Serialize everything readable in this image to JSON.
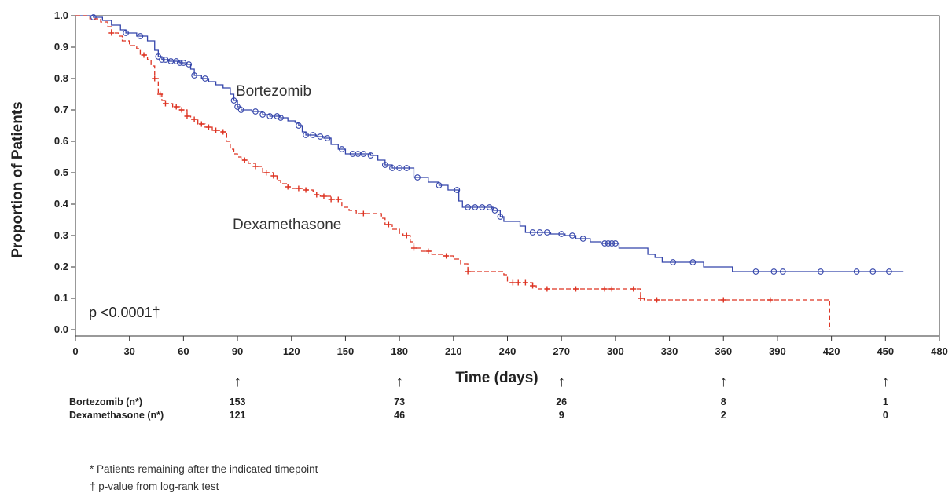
{
  "chart_data": {
    "type": "line",
    "subtype": "kaplan-meier",
    "xlabel": "Time (days)",
    "ylabel": "Proportion of Patients",
    "xlim": [
      0,
      480
    ],
    "ylim": [
      0.0,
      1.0
    ],
    "x_ticks": [
      "0",
      "30",
      "60",
      "90",
      "120",
      "150",
      "180",
      "210",
      "240",
      "270",
      "300",
      "330",
      "360",
      "390",
      "420",
      "450",
      "480"
    ],
    "y_ticks": [
      "0.0",
      "0.1",
      "0.2",
      "0.3",
      "0.4",
      "0.5",
      "0.6",
      "0.7",
      "0.8",
      "0.9",
      "1.0"
    ],
    "grid": false,
    "series": [
      {
        "name": "Bortezomib",
        "color": "#3344aa",
        "line_style": "solid",
        "marker": "circle",
        "steps": [
          [
            0,
            1.0
          ],
          [
            10,
            0.995
          ],
          [
            15,
            0.985
          ],
          [
            20,
            0.97
          ],
          [
            25,
            0.955
          ],
          [
            28,
            0.945
          ],
          [
            34,
            0.935
          ],
          [
            40,
            0.92
          ],
          [
            44,
            0.89
          ],
          [
            46,
            0.87
          ],
          [
            48,
            0.86
          ],
          [
            52,
            0.855
          ],
          [
            58,
            0.85
          ],
          [
            62,
            0.845
          ],
          [
            64,
            0.83
          ],
          [
            66,
            0.81
          ],
          [
            70,
            0.8
          ],
          [
            74,
            0.79
          ],
          [
            78,
            0.78
          ],
          [
            82,
            0.77
          ],
          [
            86,
            0.75
          ],
          [
            88,
            0.73
          ],
          [
            90,
            0.71
          ],
          [
            92,
            0.7
          ],
          [
            98,
            0.695
          ],
          [
            104,
            0.685
          ],
          [
            108,
            0.68
          ],
          [
            114,
            0.675
          ],
          [
            118,
            0.665
          ],
          [
            122,
            0.66
          ],
          [
            124,
            0.65
          ],
          [
            126,
            0.63
          ],
          [
            128,
            0.62
          ],
          [
            134,
            0.615
          ],
          [
            138,
            0.61
          ],
          [
            142,
            0.59
          ],
          [
            146,
            0.575
          ],
          [
            150,
            0.56
          ],
          [
            164,
            0.555
          ],
          [
            168,
            0.54
          ],
          [
            172,
            0.525
          ],
          [
            176,
            0.515
          ],
          [
            188,
            0.485
          ],
          [
            196,
            0.47
          ],
          [
            202,
            0.46
          ],
          [
            207,
            0.445
          ],
          [
            213,
            0.41
          ],
          [
            215,
            0.39
          ],
          [
            232,
            0.38
          ],
          [
            236,
            0.36
          ],
          [
            238,
            0.345
          ],
          [
            247,
            0.33
          ],
          [
            250,
            0.31
          ],
          [
            264,
            0.305
          ],
          [
            272,
            0.3
          ],
          [
            278,
            0.29
          ],
          [
            286,
            0.28
          ],
          [
            292,
            0.275
          ],
          [
            302,
            0.26
          ],
          [
            318,
            0.24
          ],
          [
            322,
            0.23
          ],
          [
            326,
            0.215
          ],
          [
            349,
            0.2
          ],
          [
            365,
            0.185
          ],
          [
            460,
            0.185
          ]
        ],
        "censor_x": [
          10,
          28,
          36,
          46,
          48,
          50,
          53,
          56,
          58,
          60,
          63,
          66,
          72,
          88,
          90,
          92,
          100,
          104,
          108,
          112,
          114,
          124,
          128,
          132,
          136,
          140,
          148,
          154,
          157,
          160,
          164,
          172,
          176,
          180,
          184,
          190,
          202,
          212,
          218,
          222,
          226,
          230,
          233,
          236,
          254,
          258,
          262,
          270,
          276,
          282,
          294,
          296,
          298,
          300,
          332,
          343,
          378,
          388,
          393,
          414,
          434,
          443,
          452
        ]
      },
      {
        "name": "Dexamethasone",
        "color": "#dd3322",
        "line_style": "dashed",
        "marker": "plus",
        "steps": [
          [
            0,
            1.0
          ],
          [
            8,
            0.99
          ],
          [
            14,
            0.98
          ],
          [
            18,
            0.965
          ],
          [
            20,
            0.945
          ],
          [
            24,
            0.935
          ],
          [
            26,
            0.92
          ],
          [
            30,
            0.905
          ],
          [
            34,
            0.895
          ],
          [
            36,
            0.875
          ],
          [
            40,
            0.86
          ],
          [
            42,
            0.84
          ],
          [
            44,
            0.8
          ],
          [
            46,
            0.75
          ],
          [
            48,
            0.73
          ],
          [
            50,
            0.72
          ],
          [
            54,
            0.71
          ],
          [
            58,
            0.7
          ],
          [
            62,
            0.68
          ],
          [
            64,
            0.67
          ],
          [
            68,
            0.655
          ],
          [
            72,
            0.645
          ],
          [
            76,
            0.635
          ],
          [
            80,
            0.63
          ],
          [
            84,
            0.6
          ],
          [
            86,
            0.575
          ],
          [
            88,
            0.56
          ],
          [
            90,
            0.55
          ],
          [
            92,
            0.54
          ],
          [
            96,
            0.53
          ],
          [
            100,
            0.52
          ],
          [
            104,
            0.5
          ],
          [
            110,
            0.49
          ],
          [
            112,
            0.475
          ],
          [
            114,
            0.465
          ],
          [
            118,
            0.455
          ],
          [
            120,
            0.45
          ],
          [
            128,
            0.445
          ],
          [
            132,
            0.44
          ],
          [
            134,
            0.43
          ],
          [
            136,
            0.425
          ],
          [
            142,
            0.415
          ],
          [
            148,
            0.39
          ],
          [
            152,
            0.38
          ],
          [
            156,
            0.37
          ],
          [
            170,
            0.355
          ],
          [
            172,
            0.335
          ],
          [
            176,
            0.32
          ],
          [
            180,
            0.305
          ],
          [
            182,
            0.3
          ],
          [
            186,
            0.28
          ],
          [
            188,
            0.26
          ],
          [
            192,
            0.25
          ],
          [
            198,
            0.24
          ],
          [
            204,
            0.235
          ],
          [
            210,
            0.225
          ],
          [
            214,
            0.21
          ],
          [
            218,
            0.185
          ],
          [
            238,
            0.175
          ],
          [
            240,
            0.15
          ],
          [
            254,
            0.14
          ],
          [
            256,
            0.13
          ],
          [
            314,
            0.1
          ],
          [
            316,
            0.095
          ],
          [
            419,
            0.095
          ],
          [
            419,
            0.0
          ]
        ],
        "censor_x": [
          20,
          38,
          44,
          47,
          50,
          56,
          59,
          62,
          66,
          70,
          74,
          78,
          82,
          94,
          100,
          106,
          110,
          118,
          124,
          128,
          134,
          138,
          142,
          146,
          160,
          174,
          184,
          188,
          196,
          206,
          218,
          243,
          246,
          250,
          254,
          262,
          278,
          294,
          298,
          310,
          314,
          323,
          360,
          386
        ]
      }
    ],
    "annotations": {
      "bortezomib_label": "Bortezomib",
      "dexamethasone_label": "Dexamethasone",
      "p_value": "p <0.0001†"
    },
    "risk_table": {
      "timepoints": [
        "90",
        "180",
        "270",
        "360",
        "450"
      ],
      "arrow": "↑",
      "rows": [
        {
          "label": "Bortezomib (n*)",
          "counts": [
            "153",
            "73",
            "26",
            "8",
            "1"
          ]
        },
        {
          "label": "Dexamethasone (n*)",
          "counts": [
            "121",
            "46",
            "9",
            "2",
            "0"
          ]
        }
      ]
    },
    "footnotes": [
      "* Patients remaining after the indicated timepoint",
      "† p-value from log-rank test"
    ]
  }
}
